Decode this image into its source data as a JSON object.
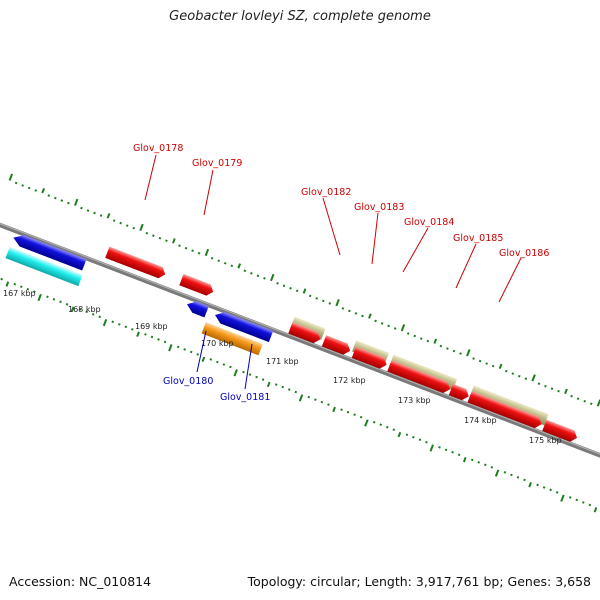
{
  "title": "Geobacter lovleyi SZ, complete genome",
  "footer": {
    "accession": "Accession: NC_010814",
    "stats": "Topology: circular; Length: 3,917,761 bp; Genes: 3,658"
  },
  "colors": {
    "backbone": "#7a7a7a",
    "tick": "#1e7d1e",
    "forward_gene": "#ee1111",
    "reverse_gene": "#1111dd",
    "label_forward": "#cc0000",
    "label_reverse": "#0000bb",
    "rna_forward": "#bcb882",
    "cyan_feature": "#22eeee",
    "orange_feature": "#f59a1a"
  },
  "scale_labels": [
    "167 kbp",
    "168 kbp",
    "169 kbp",
    "170 kbp",
    "171 kbp",
    "172 kbp",
    "173 kbp",
    "174 kbp",
    "175 kbp"
  ],
  "gene_labels": {
    "forward": [
      "Glov_0178",
      "Glov_0179",
      "Glov_0182",
      "Glov_0183",
      "Glov_0184",
      "Glov_0185",
      "Glov_0186"
    ],
    "reverse": [
      "Glov_0180",
      "Glov_0181"
    ]
  }
}
